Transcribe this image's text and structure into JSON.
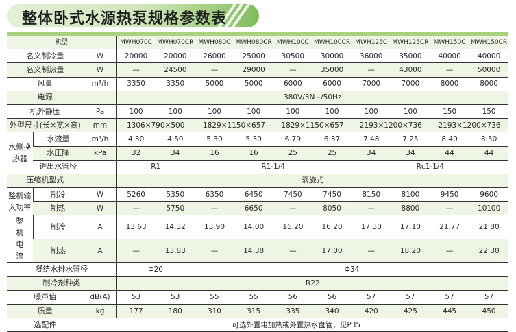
{
  "header": {
    "title": "整体卧式水源热泵规格参数表",
    "model_label": "机型"
  },
  "models": [
    "MWH070C",
    "MWH070CR",
    "MWH080C",
    "MWH080CR",
    "MWH100C",
    "MWH100CR",
    "MWH125C",
    "MWH125CR",
    "MWH150C",
    "MWH150CR"
  ],
  "colors": {
    "accent": "#a8d27f",
    "stripe_fill": "#eef5e4",
    "rule": "#333333"
  },
  "specs": {
    "cooling_capacity": {
      "label": "名义制冷量",
      "unit": "W",
      "values": [
        "20000",
        "20000",
        "26000",
        "25000",
        "30500",
        "30000",
        "36000",
        "35000",
        "40000",
        "40000"
      ]
    },
    "heating_capacity": {
      "label": "名义制热量",
      "unit": "W",
      "values": [
        "—",
        "24500",
        "—",
        "29000",
        "—",
        "35000",
        "—",
        "43000",
        "—",
        "50000"
      ]
    },
    "airflow": {
      "label": "风量",
      "unit": "m³/h",
      "values": [
        "3350",
        "3350",
        "5000",
        "5000",
        "6000",
        "6000",
        "7000",
        "7000",
        "8000",
        "8000"
      ]
    },
    "power_supply": {
      "label": "电源",
      "value": "380V/3N~/50Hz"
    },
    "static_pressure": {
      "label": "机外静压",
      "unit": "Pa",
      "values": [
        "100",
        "100",
        "100",
        "100",
        "100",
        "100",
        "100",
        "100",
        "150",
        "150"
      ]
    },
    "dimensions": {
      "label": "外型尺寸(长×宽×高)",
      "unit": "mm",
      "values": [
        "1306×790×500",
        "1829×1150×657",
        "1829×1150×657",
        "2193×1200×736",
        "2193×1200×736"
      ]
    },
    "water_hx": {
      "label": "水侧换热器",
      "flow": {
        "label": "水流量",
        "unit": "m³/h",
        "values": [
          "4.30",
          "4.50",
          "5.30",
          "5.30",
          "6.79",
          "6.37",
          "7.48",
          "7.25",
          "8.40",
          "8.50"
        ]
      },
      "pressure_drop": {
        "label": "水压降",
        "unit": "kPa",
        "values": [
          "32",
          "34",
          "16",
          "16",
          "25",
          "25",
          "34",
          "34",
          "44",
          "44"
        ]
      },
      "pipe": {
        "label": "进出水管径",
        "values": [
          "R1",
          "R1-1/4",
          "Rc1-1/4"
        ]
      }
    },
    "compressor": {
      "label": "压缩机型式",
      "value": "涡旋式"
    },
    "input_power": {
      "label": "整机输入功率",
      "cooling": {
        "label": "制冷",
        "unit": "W",
        "values": [
          "5260",
          "5350",
          "6350",
          "6450",
          "7450",
          "7450",
          "8150",
          "8100",
          "9450",
          "9600"
        ]
      },
      "heating": {
        "label": "制热",
        "unit": "W",
        "values": [
          "—",
          "5750",
          "—",
          "6650",
          "—",
          "8050",
          "—",
          "8800",
          "—",
          "10100"
        ]
      }
    },
    "current": {
      "label": "整机电流",
      "cooling": {
        "label": "制冷",
        "unit": "A",
        "values": [
          "13.63",
          "14.32",
          "13.90",
          "14.00",
          "16.20",
          "16.20",
          "17.30",
          "17.10",
          "21.77",
          "21.80"
        ]
      },
      "heating": {
        "label": "制热",
        "unit": "A",
        "values": [
          "—",
          "13.83",
          "—",
          "14.38",
          "—",
          "17.00",
          "—",
          "18.20",
          "—",
          "22.30"
        ]
      }
    },
    "condensate_pipe": {
      "label": "凝结水排水管径",
      "values": [
        "Φ20",
        "Φ34"
      ]
    },
    "refrigerant": {
      "label": "制冷剂种类",
      "value": "R22"
    },
    "noise": {
      "label": "噪声值",
      "unit": "dB(A)",
      "values": [
        "53",
        "53",
        "55",
        "55",
        "56",
        "56",
        "57",
        "57",
        "57",
        "57"
      ]
    },
    "weight": {
      "label": "质量",
      "unit": "kg",
      "values": [
        "177",
        "180",
        "310",
        "315",
        "335",
        "340",
        "420",
        "425",
        "445",
        "450"
      ]
    },
    "accessories": {
      "label": "选配件",
      "value": "可选外置电加热或外置热水盘管，见P35"
    }
  }
}
